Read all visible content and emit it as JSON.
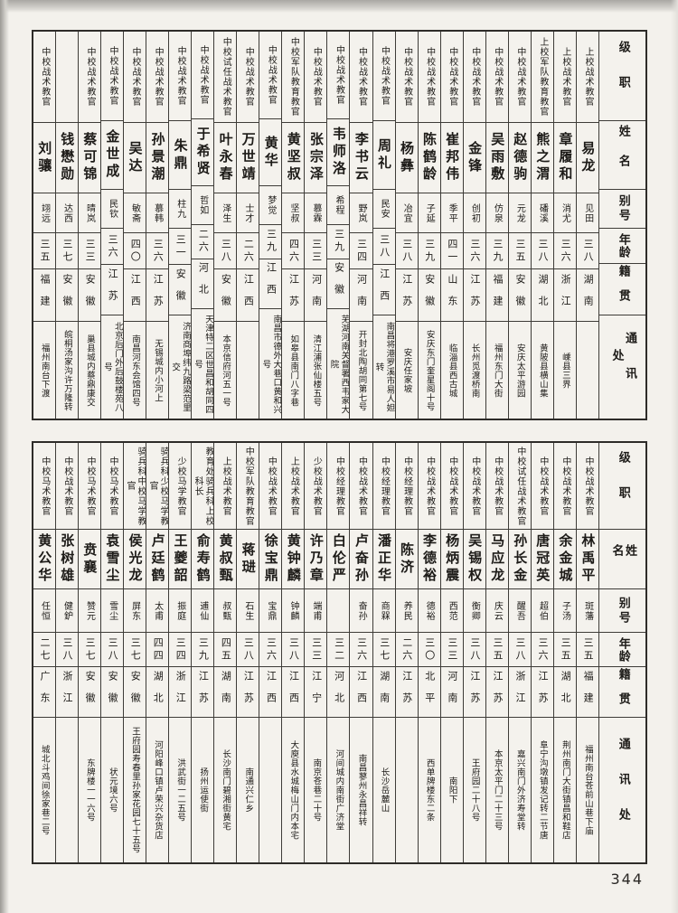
{
  "page": {
    "number": "344"
  },
  "header_labels": {
    "rank": "级职",
    "name": "姓名",
    "hao": "别号",
    "age": "年龄",
    "native": "籍贯",
    "address": "通讯处"
  },
  "tables": [
    {
      "people": [
        {
          "rank": "上校战术教官",
          "name": "易龙",
          "hao": "见田",
          "age": "三八",
          "native": "湖南",
          "address": ""
        },
        {
          "rank": "上校战术教官",
          "name": "章履和",
          "hao": "消尤",
          "age": "三六",
          "native": "浙江",
          "address": "嵊县三界"
        },
        {
          "rank": "上校军队教育教官",
          "name": "熊之渭",
          "hao": "磻溪",
          "age": "三八",
          "native": "湖北",
          "address": "黄陂县横山集"
        },
        {
          "rank": "中校战术教官",
          "name": "赵德驹",
          "hao": "元龙",
          "age": "三五",
          "native": "安徽",
          "address": "安庆太平游园"
        },
        {
          "rank": "中校战术教官",
          "name": "吴雨敷",
          "hao": "仿泉",
          "age": "三九",
          "native": "福建",
          "address": "福州东门大街"
        },
        {
          "rank": "中校战术教官",
          "name": "金锋",
          "hao": "创初",
          "age": "三六",
          "native": "江苏",
          "address": "长州觅渡桥南"
        },
        {
          "rank": "中校战术教官",
          "name": "崔邦伟",
          "hao": "季平",
          "age": "四一",
          "native": "山东",
          "address": "临淄县西古城"
        },
        {
          "rank": "中校战术教官",
          "name": "陈鹤龄",
          "hao": "子延",
          "age": "三九",
          "native": "安徽",
          "address": "安庆东门奎星阁十号"
        },
        {
          "rank": "中校战术教官",
          "name": "杨彝",
          "hao": "冶宜",
          "age": "三八",
          "native": "江苏",
          "address": "安庆任家坡"
        },
        {
          "rank": "中校战术教官",
          "name": "周礼",
          "hao": "民安",
          "age": "三八",
          "native": "江西",
          "address": "南昌将港罗溪市易人妲转"
        },
        {
          "rank": "中校战术教官",
          "name": "李书云",
          "hao": "野岚",
          "age": "三四",
          "native": "河南",
          "address": "开封北陶胡同第七号"
        },
        {
          "rank": "中校战术教官",
          "name": "韦师洛",
          "hao": "希程",
          "age": "三九",
          "native": "安徽",
          "address": "芜湖河南关督署西韦家大院"
        },
        {
          "rank": "中校战术教官",
          "name": "张宗泽",
          "hao": "慕霖",
          "age": "三三",
          "native": "河南",
          "address": "清江浦张仙楼五号"
        },
        {
          "rank": "中校军队教育教官",
          "name": "黄坚叔",
          "hao": "坚叔",
          "age": "四六",
          "native": "江苏",
          "address": "如皋县南门八字巷"
        },
        {
          "rank": "中校战术教官",
          "name": "黄华",
          "hao": "梦觉",
          "age": "三九",
          "native": "江西",
          "address": "南昌市德外大巷口黄和兴号"
        },
        {
          "rank": "中校战术教官",
          "name": "万世靖",
          "hao": "士才",
          "age": "二六",
          "native": "江西",
          "address": ""
        },
        {
          "rank": "中校试任战术教官",
          "name": "叶永春",
          "hao": "泽生",
          "age": "三八",
          "native": "安徽",
          "address": "本京信府河五一号"
        },
        {
          "rank": "中校战术教官",
          "name": "于希贤",
          "hao": "哲如",
          "age": "二六",
          "native": "河北",
          "address": "天津特二区世昌和胡同四号"
        },
        {
          "rank": "中校战术教官",
          "name": "朱鼎",
          "hao": "柱九",
          "age": "三一",
          "native": "安徽",
          "address": "济南商埠纬九路梁范里交"
        },
        {
          "rank": "中校战术教官",
          "name": "孙景潮",
          "hao": "慕韩",
          "age": "三六",
          "native": "江苏",
          "address": "无锡城内小河上"
        },
        {
          "rank": "中校战术教官",
          "name": "吴达",
          "hao": "敏斋",
          "age": "四〇",
          "native": "江西",
          "address": "南昌河东会馆四号"
        },
        {
          "rank": "中校战术教官",
          "name": "金世成",
          "hao": "民钦",
          "age": "三六",
          "native": "江苏",
          "address": "北京后门外后鼓楼苑八号"
        },
        {
          "rank": "中校战术教官",
          "name": "蔡可锦",
          "hao": "晴岚",
          "age": "三三",
          "native": "安徽",
          "address": "巢县城内蔡鼎康交"
        },
        {
          "rank": "",
          "name": "钱懋勋",
          "hao": "达西",
          "age": "三七",
          "native": "安徽",
          "address": "皖桐汤家沟许万隆转"
        },
        {
          "rank": "中校战术教官",
          "name": "刘骧",
          "hao": "翊远",
          "age": "三五",
          "native": "福建",
          "address": "福州南台下渡"
        }
      ]
    },
    {
      "people": [
        {
          "rank": "中校战术教官",
          "name": "林禹平",
          "hao": "斑藩",
          "age": "三五",
          "native": "福建",
          "address": "福州南台苍前山巷下庙"
        },
        {
          "rank": "中校战术教官",
          "name": "余金城",
          "hao": "子汤",
          "age": "三五",
          "native": "湖北",
          "address": "荆州南门大街镇昌和鞋店"
        },
        {
          "rank": "中校战术教官",
          "name": "唐冠英",
          "hao": "超伯",
          "age": "三六",
          "native": "江苏",
          "address": "阜宁沟墩镇发记转二节唐"
        },
        {
          "rank": "中校试任战术教官",
          "name": "孙长金",
          "hao": "醒吾",
          "age": "三八",
          "native": "浙江",
          "address": "嘉兴南门外济寿堂转"
        },
        {
          "rank": "中校战术教官",
          "name": "马应龙",
          "hao": "庆云",
          "age": "三五",
          "native": "江苏",
          "address": "本京太平门二十三号"
        },
        {
          "rank": "中校战术教官",
          "name": "吴锡权",
          "hao": "衡卿",
          "age": "三八",
          "native": "江苏",
          "address": "王府园二十八号"
        },
        {
          "rank": "中校战术教官",
          "name": "杨炳震",
          "hao": "西范",
          "age": "三三",
          "native": "河南",
          "address": "南阳下"
        },
        {
          "rank": "中校战术教官",
          "name": "李德裕",
          "hao": "德裕",
          "age": "三〇",
          "native": "北平",
          "address": "西单牌楼东二条"
        },
        {
          "rank": "中校经理教官",
          "name": "陈济",
          "hao": "养民",
          "age": "二六",
          "native": "江苏",
          "address": ""
        },
        {
          "rank": "中校经理教官",
          "name": "潘正华",
          "hao": "商槑",
          "age": "三七",
          "native": "湖南",
          "address": "长沙岳麓山"
        },
        {
          "rank": "中校战术教官",
          "name": "卢奋孙",
          "hao": "奋孙",
          "age": "三六",
          "native": "江西",
          "address": "南昌蓼州永昌祥转"
        },
        {
          "rank": "中校经理教官",
          "name": "白伦严",
          "hao": "",
          "age": "三二",
          "native": "河北",
          "address": "河间城内南街广济堂"
        },
        {
          "rank": "少校战术教官",
          "name": "许乃章",
          "hao": "端甫",
          "age": "三三",
          "native": "江宁",
          "address": "南京苍巷二十号"
        },
        {
          "rank": "上校战术教官",
          "name": "黄钟麟",
          "hao": "钟麟",
          "age": "三八",
          "native": "江西",
          "address": "大庾县水城梅山门内本宅"
        },
        {
          "rank": "中校战术教官",
          "name": "徐宝鼎",
          "hao": "宝鼎",
          "age": "三六",
          "native": "江西",
          "address": ""
        },
        {
          "rank": "中校军队教育教官",
          "name": "蒋琎",
          "hao": "石生",
          "age": "三八",
          "native": "江苏",
          "address": "南通兴仁乡"
        },
        {
          "rank": "上校战术教官",
          "name": "黄叔甄",
          "hao": "叔甄",
          "age": "四五",
          "native": "湖南",
          "address": "长沙南门碧湘街黄宅"
        },
        {
          "rank": "教育处骑兵科上校科长",
          "name": "俞寿鹤",
          "hao": "逋仙",
          "age": "三九",
          "native": "江苏",
          "address": "扬州运使街"
        },
        {
          "rank": "少校马学教官",
          "name": "王夔韶",
          "hao": "振庭",
          "age": "三四",
          "native": "浙江",
          "address": "洪武街一二五号"
        },
        {
          "rank": "骑兵科少校马学教官",
          "name": "卢廷鹤",
          "hao": "太甫",
          "age": "四四",
          "native": "湖北",
          "address": "河阳峰口镇卢荣兴杂货店"
        },
        {
          "rank": "骑兵科中校马学教官",
          "name": "侯光龙",
          "hao": "屏东",
          "age": "三七",
          "native": "安徽",
          "address": "王府园寿春里孙家花园七十五号"
        },
        {
          "rank": "中校马术教官",
          "name": "袁雪尘",
          "hao": "雪尘",
          "age": "三八",
          "native": "安徽",
          "address": "状元境六号"
        },
        {
          "rank": "中校马术教官",
          "name": "贲襄",
          "hao": "赞元",
          "age": "三七",
          "native": "安徽",
          "address": "东牌楼一一六号"
        },
        {
          "rank": "中校战术教官",
          "name": "张树雄",
          "hao": "健鈩",
          "age": "三八",
          "native": "浙江",
          "address": ""
        },
        {
          "rank": "中校马术教官",
          "name": "黄公华",
          "hao": "任恒",
          "age": "二七",
          "native": "广东",
          "address": "城北斗鸡间徐家巷二号"
        }
      ]
    }
  ]
}
